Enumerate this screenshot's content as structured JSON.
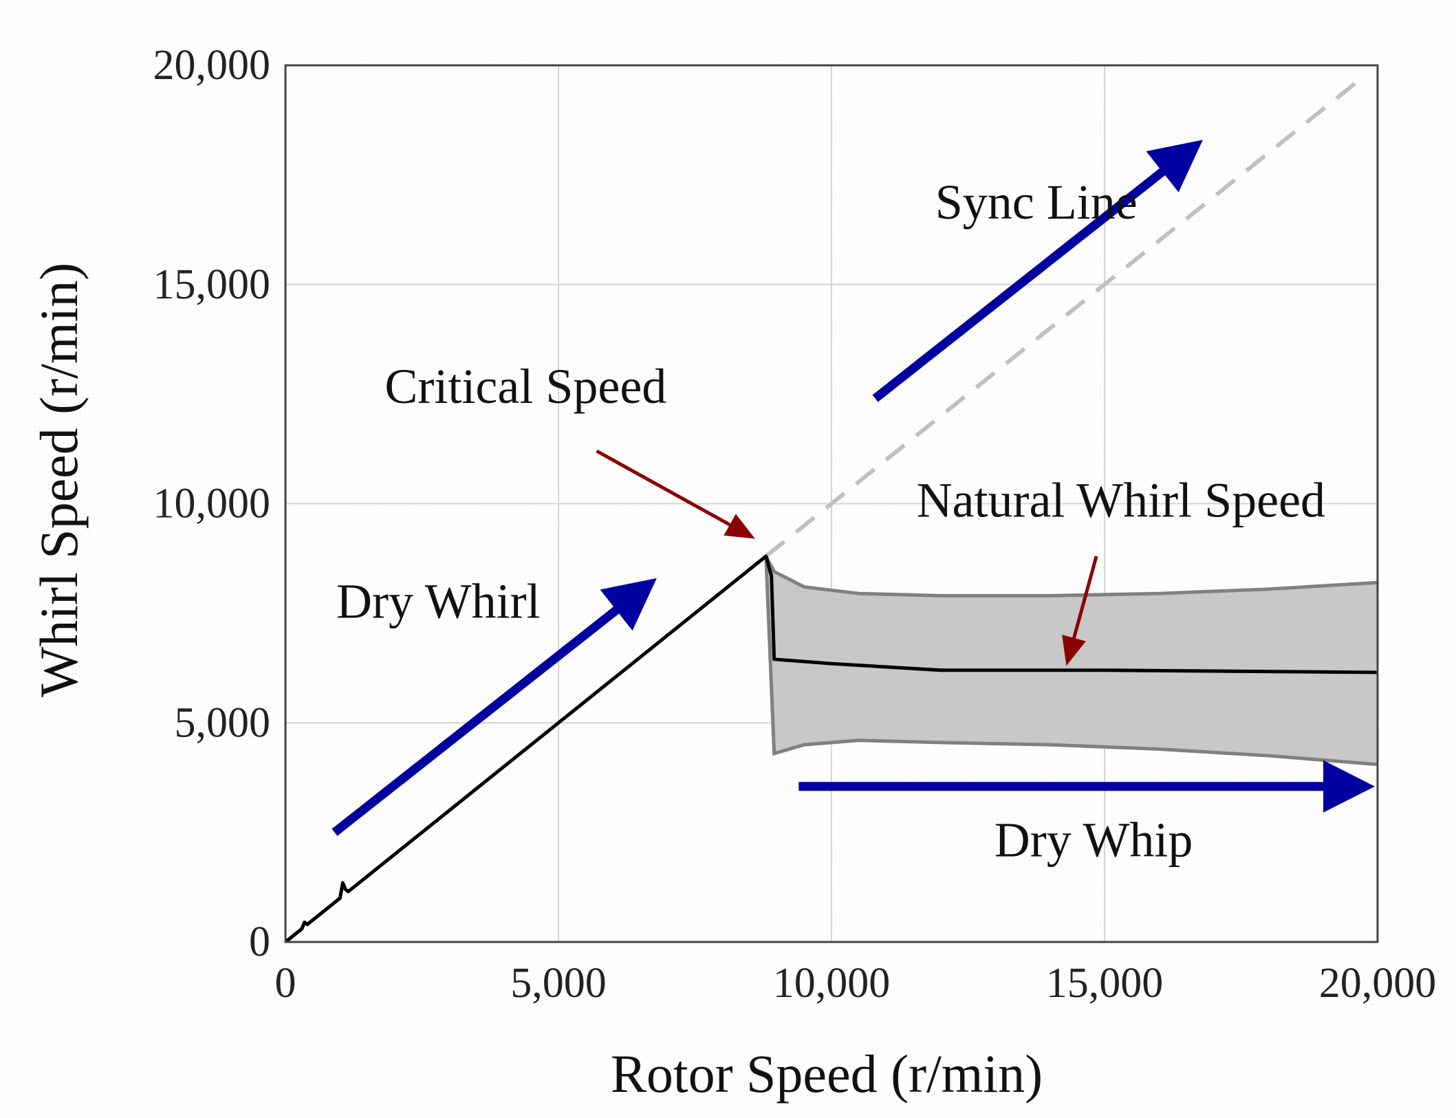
{
  "chart_data": {
    "type": "line",
    "xlabel": "Rotor Speed (r/min)",
    "ylabel": "Whirl Speed (r/min)",
    "xlim": [
      0,
      20000
    ],
    "ylim": [
      0,
      20000
    ],
    "grid": true,
    "xticks": [
      0,
      5000,
      10000,
      15000,
      20000
    ],
    "yticks": [
      0,
      5000,
      10000,
      15000,
      20000
    ],
    "xtick_labels": [
      "0",
      "5,000",
      "10,000",
      "15,000",
      "20,000"
    ],
    "ytick_labels": [
      "0",
      "5,000",
      "10,000",
      "15,000",
      "20,000"
    ],
    "series": [
      {
        "name": "Sync Line",
        "style": "dashed",
        "color": "#c0c0c0",
        "x": [
          8800,
          19700
        ],
        "y": [
          8800,
          19700
        ]
      },
      {
        "name": "Whirl Speed",
        "style": "solid",
        "color": "#000000",
        "x": [
          0,
          300,
          350,
          400,
          1000,
          1050,
          1100,
          1150,
          8800,
          8900,
          8950,
          10000,
          12000,
          15000,
          20000
        ],
        "y": [
          0,
          300,
          450,
          400,
          1000,
          1350,
          1200,
          1150,
          8800,
          8350,
          6450,
          6350,
          6200,
          6200,
          6150
        ]
      }
    ],
    "band": {
      "name": "Natural Whirl Speed band",
      "fill": "#c8c8c8",
      "edge": "#808080",
      "x": [
        8800,
        8950,
        9500,
        10500,
        12000,
        14000,
        16000,
        18000,
        20000
      ],
      "upper": [
        8800,
        8450,
        8100,
        7950,
        7900,
        7900,
        7950,
        8050,
        8200
      ],
      "lower": [
        8800,
        4300,
        4500,
        4600,
        4550,
        4500,
        4400,
        4250,
        4050
      ]
    },
    "annotations": [
      {
        "id": "sync_line",
        "text": "Sync Line",
        "x": 13750,
        "y": 16500
      },
      {
        "id": "critical_speed",
        "text": "Critical Speed",
        "x": 4400,
        "y": 12300
      },
      {
        "id": "natural_whirl_speed",
        "text": "Natural Whirl Speed",
        "x": 15300,
        "y": 9700
      },
      {
        "id": "dry_whirl",
        "text": "Dry Whirl",
        "x": 2800,
        "y": 7400
      },
      {
        "id": "dry_whip",
        "text": "Dry Whip",
        "x": 14800,
        "y": 1950
      }
    ],
    "arrows": [
      {
        "id": "sync-line-arrow",
        "color": "#0000a0",
        "from": [
          10800,
          12400
        ],
        "to": [
          16800,
          18300
        ],
        "width": "thick"
      },
      {
        "id": "dry-whirl-arrow",
        "color": "#0000a0",
        "from": [
          900,
          2500
        ],
        "to": [
          6800,
          8300
        ],
        "width": "thick"
      },
      {
        "id": "dry-whip-arrow",
        "color": "#0000a0",
        "from": [
          9400,
          3550
        ],
        "to": [
          19950,
          3550
        ],
        "width": "thick"
      },
      {
        "id": "critical-speed-arrow",
        "color": "#8b0000",
        "from": [
          5700,
          11200
        ],
        "to": [
          8600,
          9200
        ],
        "width": "thin"
      },
      {
        "id": "natural-whirl-arrow",
        "color": "#8b0000",
        "from": [
          14850,
          8800
        ],
        "to": [
          14300,
          6300
        ],
        "width": "thin"
      }
    ]
  }
}
